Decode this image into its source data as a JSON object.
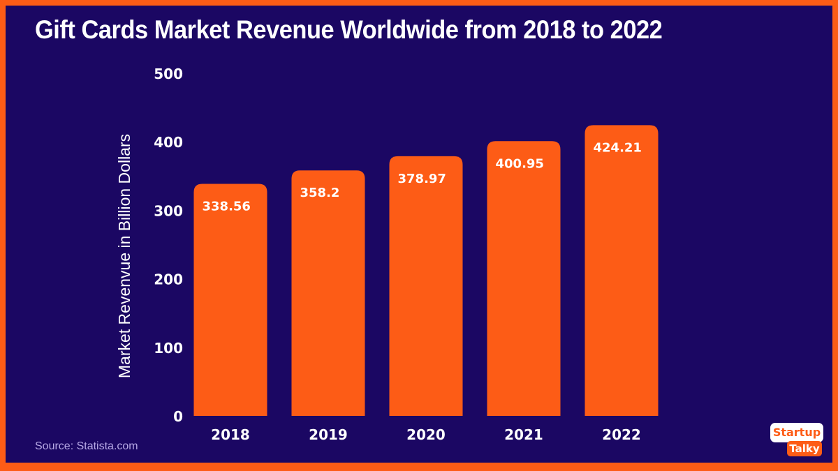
{
  "chart_data": {
    "type": "bar",
    "title": "Gift Cards Market Revenue Worldwide from 2018 to 2022",
    "xlabel": "",
    "ylabel": "Market Revenvue in Billion Dollars",
    "categories": [
      "2018",
      "2019",
      "2020",
      "2021",
      "2022"
    ],
    "values": [
      338.56,
      358.2,
      378.97,
      400.95,
      424.21
    ],
    "value_labels": [
      "338.56",
      "358.2",
      "378.97",
      "400.95",
      "424.21"
    ],
    "ylim": [
      0,
      500
    ],
    "yticks": [
      0,
      100,
      200,
      300,
      400,
      500
    ],
    "grid": false,
    "bar_color": "#fd5c16",
    "background_color": "#1b0763"
  },
  "footer": {
    "source": "Source: Statista.com",
    "logo_line1": "Startup",
    "logo_line2": "Talky"
  }
}
